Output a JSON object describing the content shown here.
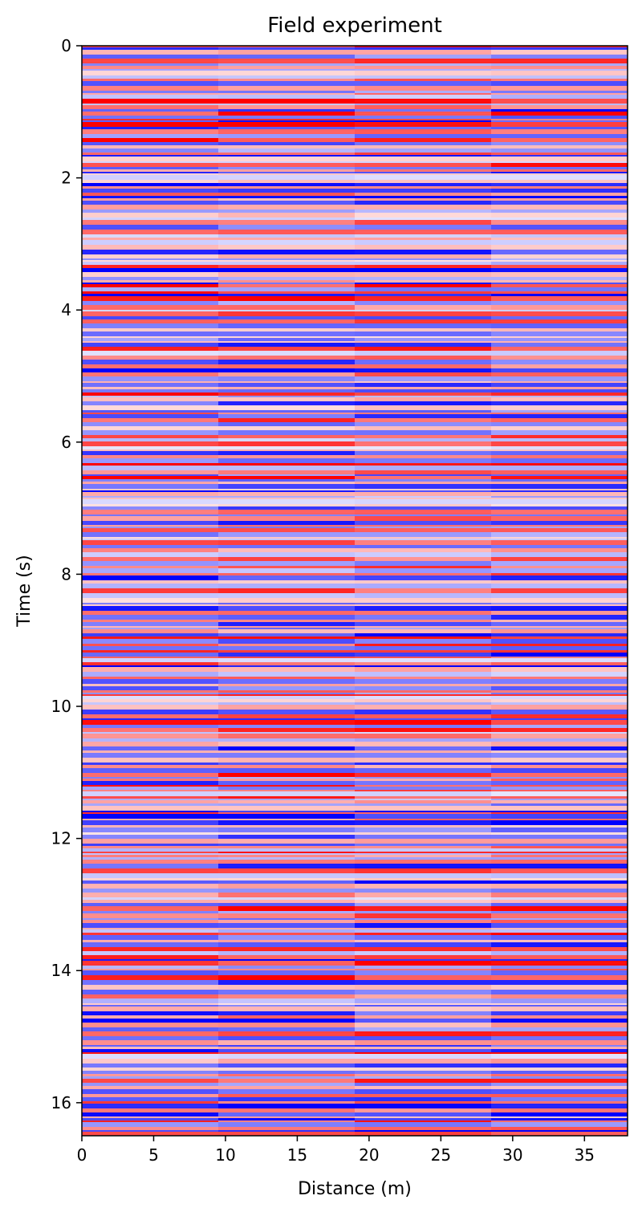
{
  "chart_data": {
    "type": "heatmap",
    "title": "Field experiment",
    "xlabel": "Distance (m)",
    "ylabel": "Time (s)",
    "xlim": [
      0,
      38
    ],
    "ylim": [
      16.5,
      0
    ],
    "y_inverted": true,
    "x_ticks": [
      0,
      5,
      10,
      15,
      20,
      25,
      30,
      35
    ],
    "x_tick_labels": [
      "0",
      "5",
      "10",
      "15",
      "20",
      "25",
      "30",
      "35"
    ],
    "y_ticks": [
      0,
      2,
      4,
      6,
      8,
      10,
      12,
      14,
      16
    ],
    "y_tick_labels": [
      "0",
      "2",
      "4",
      "6",
      "8",
      "10",
      "12",
      "14",
      "16"
    ],
    "colormap": "bwr",
    "colormap_colors": {
      "negative": "#0000ff",
      "zero": "#ffffff",
      "positive": "#ff0000"
    },
    "value_range": [
      -1,
      1
    ],
    "legend": "none",
    "grid": false,
    "description_of_field": "Dense horizontal stripes of alternating red (positive) and blue (negative) amplitude across all distances, gently tilted, with banding roughly every 0.05–0.2 s over 0–16.5 s.",
    "stripe_seed": 7
  }
}
